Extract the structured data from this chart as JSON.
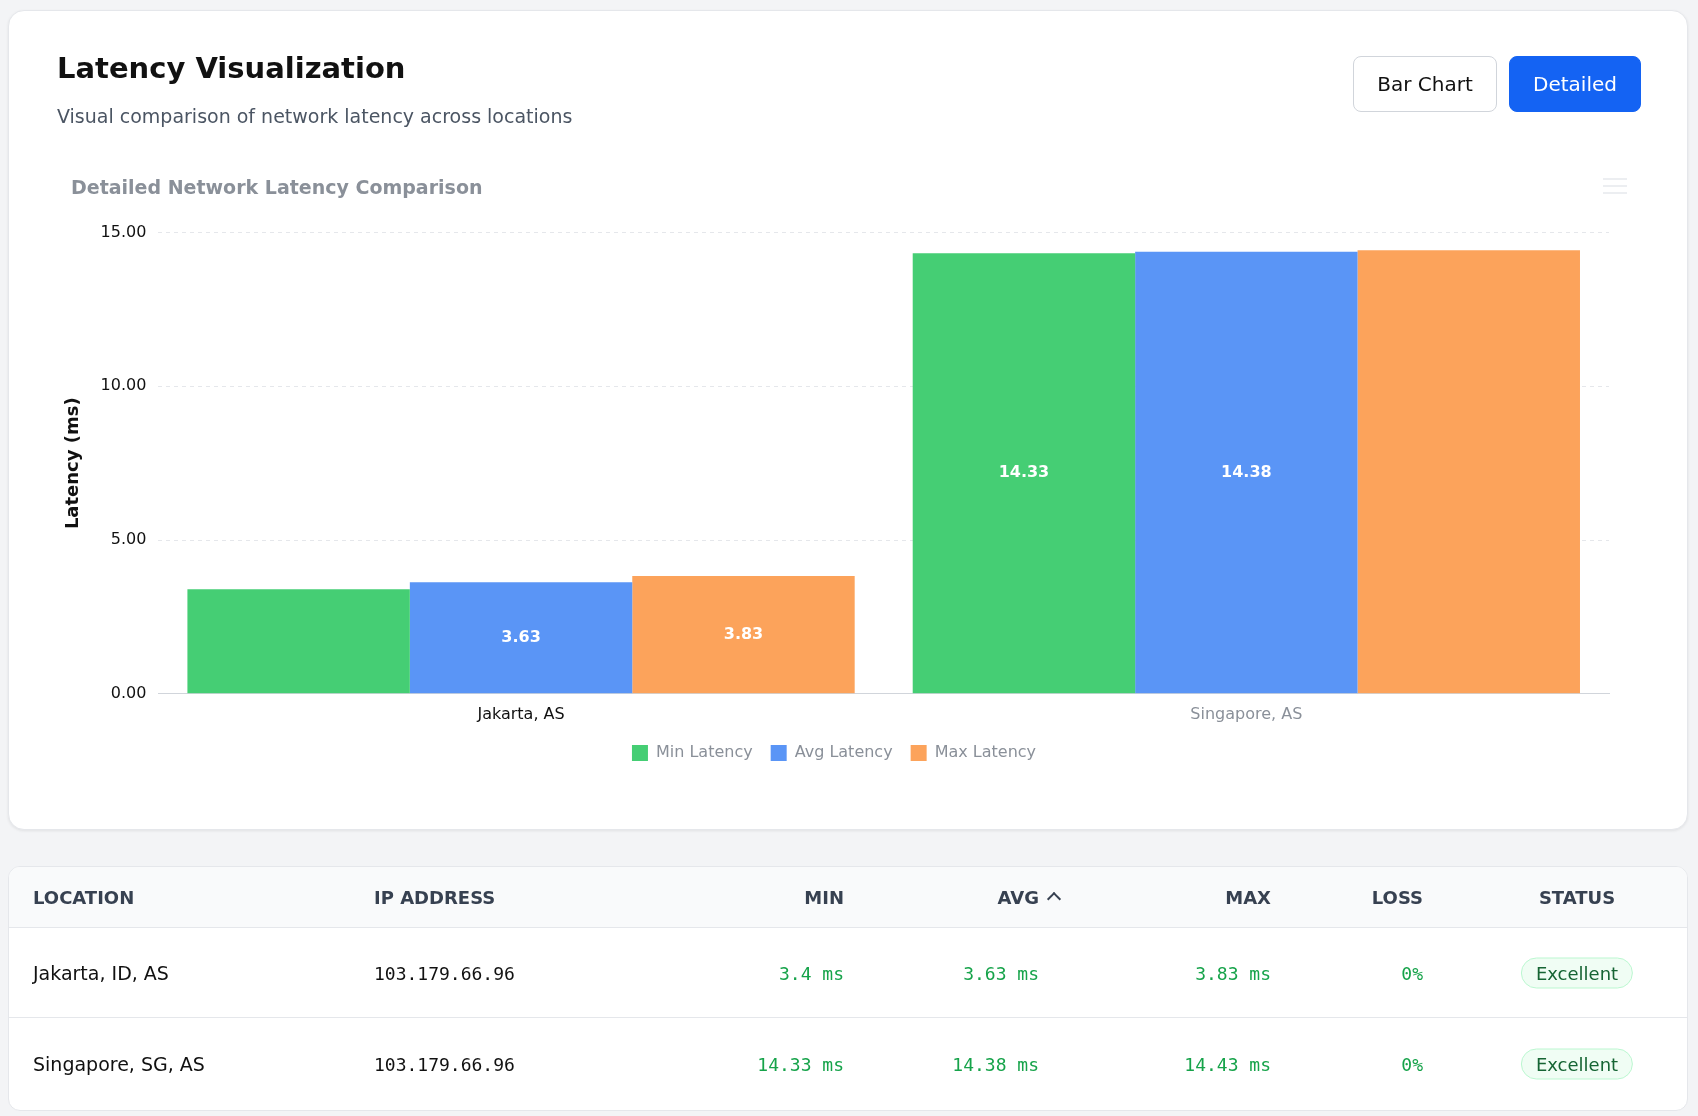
{
  "chart_data": [
    {
      "type": "bar",
      "title": "Latency Visualization",
      "subtitle": "Visual comparison of network latency across locations",
      "annotations": [
        "Detailed Network Latency Comparison",
        "Bar Chart",
        "Detailed"
      ],
      "categories": [
        "Jakarta, AS",
        "Singapore, AS"
      ],
      "series": [
        {
          "name": "Min Latency",
          "color": "#45ce74",
          "values": [
            3.4,
            14.33
          ],
          "value_labels": [
            null,
            "14.33"
          ]
        },
        {
          "name": "Avg Latency",
          "color": "#5a95f6",
          "values": [
            3.63,
            14.38
          ],
          "value_labels": [
            "3.63",
            "14.38"
          ]
        },
        {
          "name": "Max Latency",
          "color": "#fca35b",
          "values": [
            3.83,
            14.43
          ],
          "value_labels": [
            "3.83",
            null
          ]
        }
      ],
      "ylabel": "Latency (ms)",
      "ylim": [
        0,
        15
      ],
      "yticks": [
        {
          "value": 0,
          "label": "0.00"
        },
        {
          "value": 5,
          "label": "5.00"
        },
        {
          "value": 10,
          "label": "10.00"
        },
        {
          "value": 15,
          "label": "15.00"
        }
      ],
      "grid": "y",
      "legend": "bottom"
    },
    {
      "type": "other",
      "annotations": [
        "LOCATION",
        "IP ADDRESS",
        "MIN",
        "AVG",
        "MAX",
        "LOSS",
        "STATUS",
        "Jakarta, ID, AS",
        "103.179.66.96",
        "3.4 ms",
        "3.63 ms",
        "3.83 ms",
        "0%",
        "Excellent",
        "Singapore, SG, AS",
        "103.179.66.96",
        "14.33 ms",
        "14.38 ms",
        "14.43 ms",
        "0%",
        "Excellent"
      ]
    }
  ]
}
